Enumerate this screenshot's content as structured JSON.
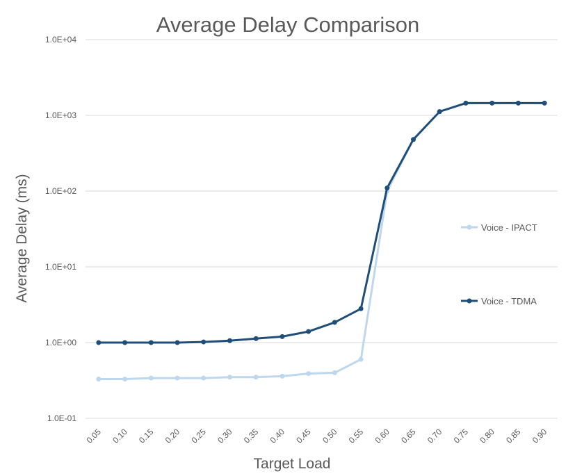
{
  "chart_data": {
    "type": "line",
    "title": "Average Delay Comparison",
    "xlabel": "Target Load",
    "ylabel": "Average Delay (ms)",
    "yscale": "log",
    "ylim": [
      0.1,
      10000
    ],
    "yticks": [
      0.1,
      1,
      10,
      100,
      1000,
      10000
    ],
    "ytick_labels": [
      "1.0E-01",
      "1.0E+00",
      "1.0E+01",
      "1.0E+02",
      "1.0E+03",
      "1.0E+04"
    ],
    "categories": [
      "0.05",
      "0.10",
      "0.15",
      "0.20",
      "0.25",
      "0.30",
      "0.35",
      "0.40",
      "0.45",
      "0.50",
      "0.55",
      "0.60",
      "0.65",
      "0.70",
      "0.75",
      "0.80",
      "0.85",
      "0.90"
    ],
    "grid": true,
    "legend_position": "right",
    "series": [
      {
        "name": "Voice - IPACT",
        "color": "#bdd7ee",
        "values": [
          0.33,
          0.33,
          0.34,
          0.34,
          0.34,
          0.35,
          0.35,
          0.36,
          0.39,
          0.4,
          0.6,
          100,
          480,
          1120,
          1450,
          1450,
          1450,
          1450
        ]
      },
      {
        "name": "Voice - TDMA",
        "color": "#1f4e79",
        "values": [
          1.0,
          1.0,
          1.0,
          1.0,
          1.02,
          1.06,
          1.13,
          1.2,
          1.4,
          1.85,
          2.8,
          110,
          480,
          1120,
          1450,
          1450,
          1450,
          1450
        ]
      }
    ]
  }
}
